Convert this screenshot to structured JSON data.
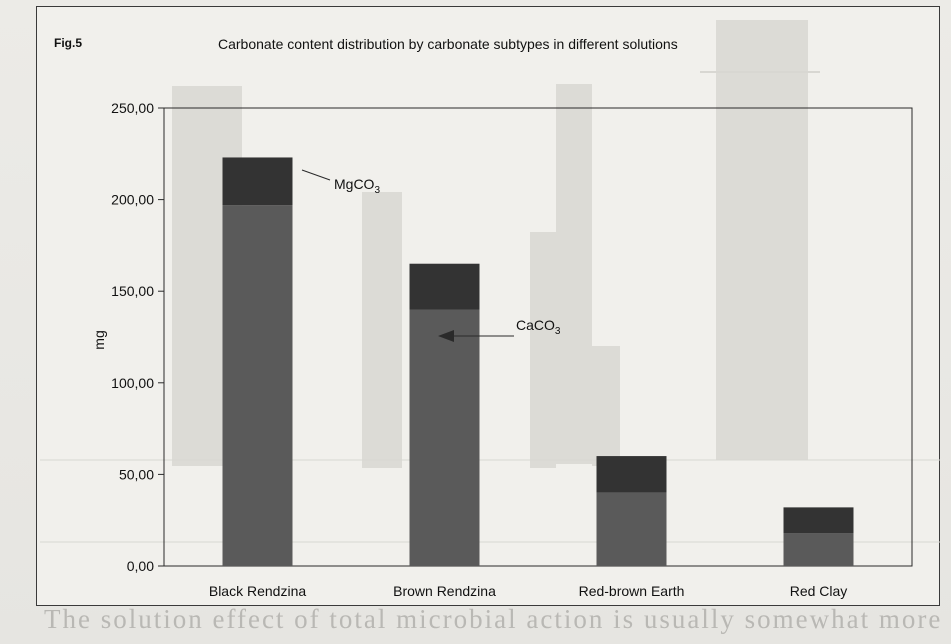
{
  "figure": {
    "label": "Fig.5",
    "title": "Carbonate content distribution by carbonate subtypes in different solutions"
  },
  "body_text": "The solution effect of total microbial action is usually somewhat more",
  "chart_data": {
    "type": "bar",
    "stacked": true,
    "categories": [
      "Black Rendzina",
      "Brown Rendzina",
      "Red-brown Earth",
      "Red Clay"
    ],
    "series": [
      {
        "name": "CaCO",
        "name_sub": "3",
        "values": [
          197,
          140,
          40,
          18
        ]
      },
      {
        "name": "MgCO",
        "name_sub": "3",
        "values": [
          26,
          25,
          20,
          14
        ]
      }
    ],
    "colors": {
      "CaCO3": "#5a5a5a",
      "MgCO3": "#333333"
    },
    "ylabel": "mg",
    "ylim": [
      0,
      250
    ],
    "yticks": [
      0,
      50,
      100,
      150,
      200,
      250
    ],
    "ytick_labels": [
      "0,00",
      "50,00",
      "100,00",
      "150,00",
      "200,00",
      "250,00"
    ],
    "annotations": [
      {
        "text": "MgCO",
        "sub": "3",
        "points_to": "MgCO3"
      },
      {
        "text": "CaCO",
        "sub": "3",
        "points_to": "CaCO3"
      }
    ],
    "grid": false,
    "legend": "none"
  }
}
